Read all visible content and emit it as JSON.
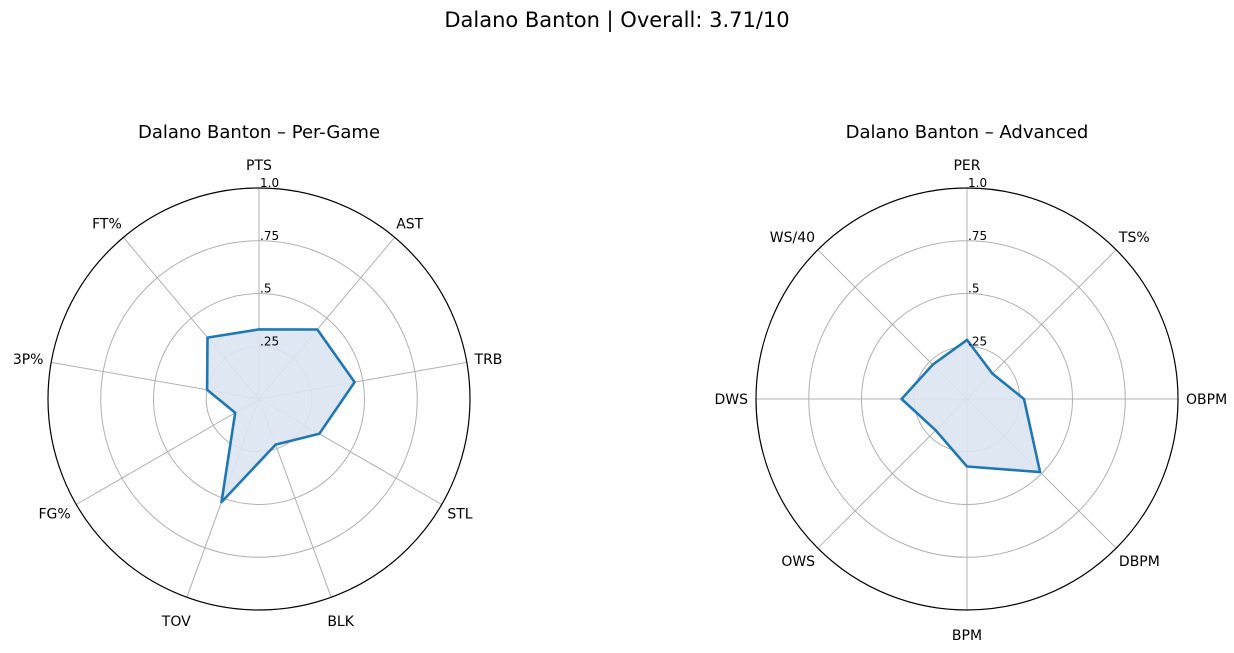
{
  "figure": {
    "title": "Dalano Banton | Overall: 3.71/10"
  },
  "colors": {
    "line": "#1f77b4",
    "fill": "#dbe6f1",
    "grid": "#b0b0b0",
    "frame": "#000000"
  },
  "chart_data": [
    {
      "type": "radar",
      "title": "Dalano Banton – Per-Game",
      "rlim": [
        0,
        1
      ],
      "rticks": [
        0.25,
        0.5,
        0.75,
        1.0
      ],
      "rtick_labels": [
        ".25",
        ".5",
        ".75",
        "1.0"
      ],
      "grid": true,
      "categories": [
        "PTS",
        "AST",
        "TRB",
        "STL",
        "BLK",
        "TOV",
        "FG%",
        "3P%",
        "FT%"
      ],
      "values": [
        0.33,
        0.43,
        0.46,
        0.33,
        0.23,
        0.52,
        0.13,
        0.25,
        0.38
      ]
    },
    {
      "type": "radar",
      "title": "Dalano Banton – Advanced",
      "rlim": [
        0,
        1
      ],
      "rticks": [
        0.25,
        0.5,
        0.75,
        1.0
      ],
      "rtick_labels": [
        ".25",
        ".5",
        ".75",
        "1.0"
      ],
      "grid": true,
      "categories": [
        "PER",
        "TS%",
        "OBPM",
        "DBPM",
        "BPM",
        "OWS",
        "DWS",
        "WS/40"
      ],
      "values": [
        0.28,
        0.17,
        0.27,
        0.49,
        0.32,
        0.21,
        0.31,
        0.23
      ]
    }
  ]
}
